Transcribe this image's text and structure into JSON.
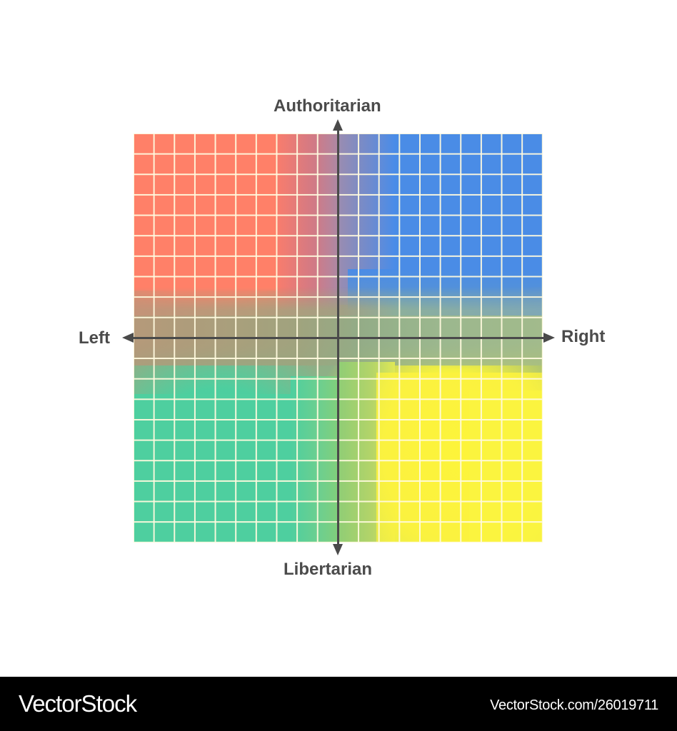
{
  "diagram": {
    "type": "political-compass",
    "grid": {
      "columns": 20,
      "rows": 20,
      "line_color": "#FFFADE"
    },
    "axes": {
      "top_label": "Authoritarian",
      "bottom_label": "Libertarian",
      "left_label": "Left",
      "right_label": "Right",
      "axis_color": "#4A4A4A"
    },
    "quadrants": [
      {
        "position": "top-left",
        "name": "authoritarian-left",
        "color": "#FF8068"
      },
      {
        "position": "top-right",
        "name": "authoritarian-right",
        "color": "#4A8CE6"
      },
      {
        "position": "bottom-left",
        "name": "libertarian-left",
        "color": "#4ECF9F"
      },
      {
        "position": "bottom-right",
        "name": "libertarian-right",
        "color": "#FBF43F"
      }
    ]
  },
  "footer": {
    "brand": "VectorStock",
    "url": "VectorStock.com/26019711",
    "background": "#000000"
  }
}
